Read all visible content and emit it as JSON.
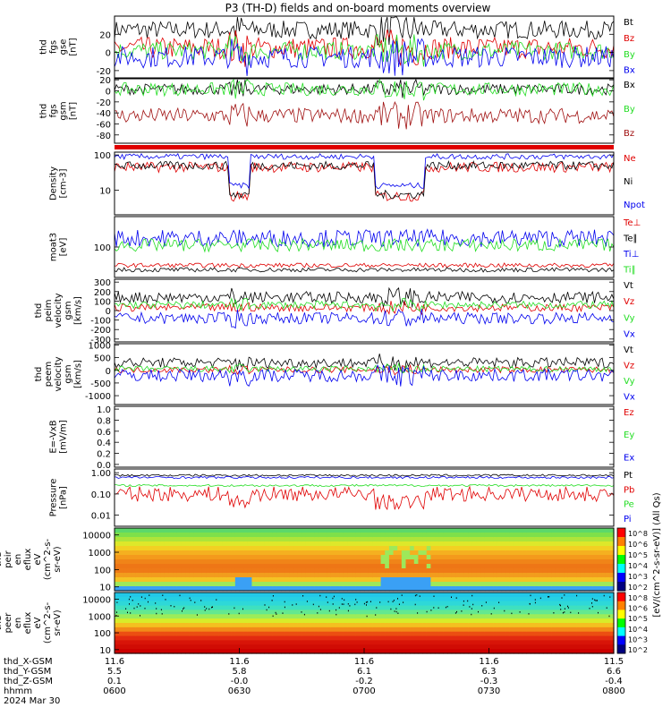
{
  "title": "P3 (TH-D) fields and on-board moments overview",
  "colors": {
    "black": "#000000",
    "red": "#e00000",
    "darkred": "#a01010",
    "green": "#22dd22",
    "blue": "#0000ee",
    "brightgreen": "#00ff00"
  },
  "chart_data": [
    {
      "panel": "fgs_gse",
      "type": "line",
      "ylabel": [
        "thd",
        "fgs",
        "gse",
        "[nT]"
      ],
      "ylim": [
        -28,
        40
      ],
      "yticks": [
        "20",
        "0",
        "-20"
      ],
      "ytick_values": [
        20,
        0,
        -20
      ],
      "series": [
        {
          "name": "Bt",
          "color": "#000000",
          "mean": 25,
          "amp": 10
        },
        {
          "name": "Bz",
          "color": "#e00000",
          "mean": 5,
          "amp": 12
        },
        {
          "name": "By",
          "color": "#22dd22",
          "mean": 2,
          "amp": 10
        },
        {
          "name": "Bx",
          "color": "#0000ee",
          "mean": -5,
          "amp": 12
        }
      ]
    },
    {
      "panel": "fgs_gsm",
      "type": "line",
      "ylabel": [
        "thd",
        "fgs",
        "gsm",
        "[nT]"
      ],
      "ylim": [
        -95,
        22
      ],
      "yticks": [
        "20",
        "0",
        "-20",
        "-40",
        "-60",
        "-80"
      ],
      "ytick_values": [
        20,
        0,
        -20,
        -40,
        -60,
        -80
      ],
      "series": [
        {
          "name": "Bx",
          "color": "#000000",
          "mean": 3,
          "amp": 10
        },
        {
          "name": "By",
          "color": "#22dd22",
          "mean": 3,
          "amp": 12
        },
        {
          "name": "Bz",
          "color": "#a01010",
          "mean": -45,
          "amp": 14
        }
      ]
    },
    {
      "panel": "density",
      "type": "line",
      "log": true,
      "ylabel": [
        "Density",
        "[cm-3]"
      ],
      "ylim": [
        2,
        120
      ],
      "yticks": [
        "100",
        "10"
      ],
      "ytick_values": [
        100,
        10
      ],
      "series": [
        {
          "name": "Ne",
          "color": "#e00000",
          "mean": 45,
          "amp": 0.15
        },
        {
          "name": "Ni",
          "color": "#000000",
          "mean": 50,
          "amp": 0.12
        },
        {
          "name": "Npot",
          "color": "#0000ee",
          "mean": 90,
          "amp": 0.08
        }
      ]
    },
    {
      "panel": "temperature",
      "type": "line",
      "log": true,
      "ylabel": [
        "moat3",
        "[eV]"
      ],
      "ylim": [
        20,
        500
      ],
      "yticks": [
        "100"
      ],
      "ytick_values": [
        100
      ],
      "series": [
        {
          "name": "Te⊥",
          "color": "#e00000",
          "mean": 38,
          "amp": 0.05
        },
        {
          "name": "Te∥",
          "color": "#000000",
          "mean": 30,
          "amp": 0.05
        },
        {
          "name": "Ti⊥",
          "color": "#0000ee",
          "mean": 160,
          "amp": 0.2
        },
        {
          "name": "Ti∥",
          "color": "#22dd22",
          "mean": 110,
          "amp": 0.15
        }
      ]
    },
    {
      "panel": "peim_velocity",
      "type": "line",
      "ylabel": [
        "thd",
        "peim",
        "velocity",
        "gsm",
        "[km/s]"
      ],
      "ylim": [
        -330,
        330
      ],
      "yticks": [
        "300",
        "200",
        "100",
        "0",
        "-100",
        "-200",
        "-300"
      ],
      "ytick_values": [
        300,
        200,
        100,
        0,
        -100,
        -200,
        -300
      ],
      "series": [
        {
          "name": "Vt",
          "color": "#000000",
          "mean": 140,
          "amp": 60
        },
        {
          "name": "Vz",
          "color": "#e00000",
          "mean": 30,
          "amp": 40
        },
        {
          "name": "Vy",
          "color": "#22dd22",
          "mean": 60,
          "amp": 40
        },
        {
          "name": "Vx",
          "color": "#0000ee",
          "mean": -80,
          "amp": 60
        }
      ]
    },
    {
      "panel": "peem_velocity",
      "type": "line",
      "ylabel": [
        "thd",
        "peem",
        "velocity",
        "gsm",
        "[km/s]"
      ],
      "ylim": [
        -1350,
        1050
      ],
      "yticks": [
        "1000",
        "500",
        "0",
        "-500",
        "-1000"
      ],
      "ytick_values": [
        1000,
        500,
        0,
        -500,
        -1000
      ],
      "series": [
        {
          "name": "Vt",
          "color": "#000000",
          "mean": 300,
          "amp": 200
        },
        {
          "name": "Vz",
          "color": "#e00000",
          "mean": 20,
          "amp": 120
        },
        {
          "name": "Vy",
          "color": "#22dd22",
          "mean": 50,
          "amp": 120
        },
        {
          "name": "Vx",
          "color": "#0000ee",
          "mean": -200,
          "amp": 250
        }
      ]
    },
    {
      "panel": "efield",
      "type": "line",
      "ylabel": [
        "E=-VxB",
        "[mV/m]"
      ],
      "ylim": [
        -0.05,
        1.05
      ],
      "yticks": [
        "1.0",
        "0.8",
        "0.6",
        "0.4",
        "0.2",
        "0.0"
      ],
      "ytick_values": [
        1.0,
        0.8,
        0.6,
        0.4,
        0.2,
        0.0
      ],
      "series": [
        {
          "name": "Ez",
          "color": "#e00000"
        },
        {
          "name": "Ey",
          "color": "#22dd22"
        },
        {
          "name": "Ex",
          "color": "#0000ee"
        }
      ]
    },
    {
      "panel": "pressure",
      "type": "line",
      "log": true,
      "ylabel": [
        "Pressure",
        "[nPa]"
      ],
      "ylim": [
        0.003,
        1.5
      ],
      "yticks": [
        "1.00",
        "0.10",
        "0.01"
      ],
      "ytick_values": [
        1.0,
        0.1,
        0.01
      ],
      "series": [
        {
          "name": "Pt",
          "color": "#000000",
          "mean": 0.75,
          "amp": 0.05
        },
        {
          "name": "Pb",
          "color": "#e00000",
          "mean": 0.1,
          "amp": 0.35
        },
        {
          "name": "Pe",
          "color": "#22dd22",
          "mean": 0.25,
          "amp": 0.05
        },
        {
          "name": "Pi",
          "color": "#0000ee",
          "mean": 0.6,
          "amp": 0.05
        }
      ]
    },
    {
      "panel": "peir_spectrogram",
      "type": "heatmap",
      "ylabel": [
        "thd",
        "peir",
        "en",
        "eflux",
        "eV",
        "(cm^2-s-",
        "sr-eV)"
      ],
      "yticks": [
        "10000",
        "1000",
        "100",
        "10"
      ],
      "ytick_values": [
        10000,
        1000,
        100,
        10
      ],
      "colorbar_ticks": [
        "10^8",
        "10^6",
        "10^5",
        "10^4",
        "10^3",
        "10^2"
      ]
    },
    {
      "panel": "peer_spectrogram",
      "type": "heatmap",
      "ylabel": [
        "thd",
        "peer",
        "en",
        "eflux",
        "eV",
        "(cm^2-s-",
        "sr-eV)"
      ],
      "yticks": [
        "10000",
        "1000",
        "100",
        "10"
      ],
      "ytick_values": [
        10000,
        1000,
        100,
        10
      ],
      "colorbar_ticks": [
        "10^8",
        "10^6",
        "10^5",
        "10^4",
        "10^3",
        "10^2"
      ]
    }
  ],
  "colorbar_label": "[eV/(cm^2-s-sr-eV)] (All Qs)",
  "x_axis": {
    "row_labels": [
      "thd_X-GSM",
      "thd_Y-GSM",
      "thd_Z-GSM",
      "hhmm",
      "2024 Mar 30"
    ],
    "ticks": [
      {
        "x": "11.6",
        "y": "5.5",
        "z": "0.1",
        "t": "0600"
      },
      {
        "x": "11.6",
        "y": "5.8",
        "z": "-0.0",
        "t": "0630"
      },
      {
        "x": "11.6",
        "y": "6.1",
        "z": "-0.2",
        "t": "0700"
      },
      {
        "x": "11.6",
        "y": "6.3",
        "z": "-0.3",
        "t": "0730"
      },
      {
        "x": "11.5",
        "y": "6.6",
        "z": "-0.4",
        "t": "0800"
      }
    ]
  }
}
